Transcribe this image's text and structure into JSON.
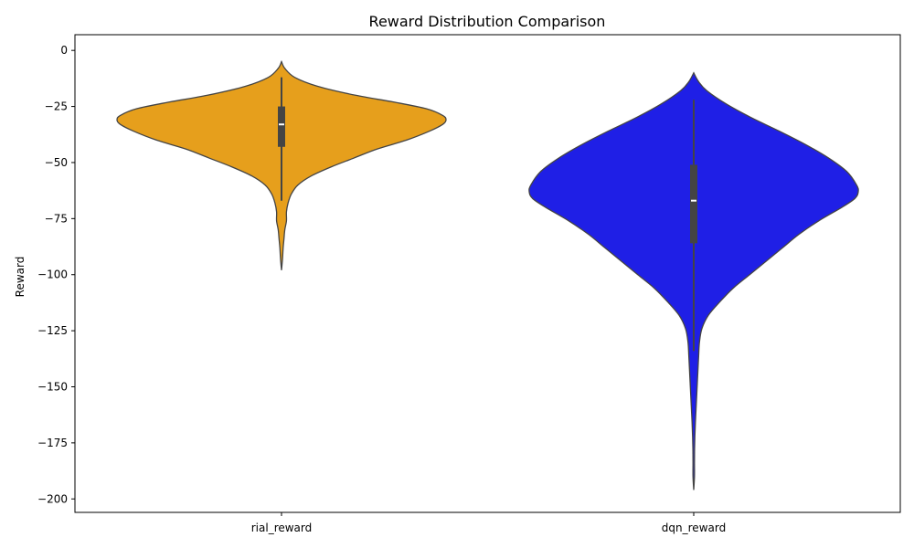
{
  "chart_data": {
    "type": "violin",
    "title": "Reward Distribution Comparison",
    "xlabel": "",
    "ylabel": "Reward",
    "ylim": [
      -206,
      7
    ],
    "yticks": [
      0,
      -25,
      -50,
      -75,
      -100,
      -125,
      -150,
      -175,
      -200
    ],
    "ytick_labels": [
      "0",
      "−25",
      "−50",
      "−75",
      "−100",
      "−125",
      "−150",
      "−175",
      "−200"
    ],
    "categories": [
      "rial_reward",
      "dqn_reward"
    ],
    "grid": false,
    "series": [
      {
        "category": "rial_reward",
        "color": "#e69f1c",
        "min": -98,
        "max": -5,
        "median": -33,
        "q1": -43,
        "q3": -25,
        "whisker_low": -67,
        "whisker_high": -12,
        "density": [
          [
            -5,
            0.0
          ],
          [
            -8,
            0.02
          ],
          [
            -12,
            0.08
          ],
          [
            -16,
            0.22
          ],
          [
            -20,
            0.45
          ],
          [
            -23,
            0.68
          ],
          [
            -26,
            0.88
          ],
          [
            -29,
            0.98
          ],
          [
            -31,
            1.0
          ],
          [
            -33,
            0.98
          ],
          [
            -36,
            0.9
          ],
          [
            -40,
            0.76
          ],
          [
            -44,
            0.58
          ],
          [
            -48,
            0.44
          ],
          [
            -52,
            0.3
          ],
          [
            -56,
            0.18
          ],
          [
            -60,
            0.1
          ],
          [
            -64,
            0.06
          ],
          [
            -68,
            0.04
          ],
          [
            -72,
            0.03
          ],
          [
            -76,
            0.03
          ],
          [
            -80,
            0.02
          ],
          [
            -84,
            0.015
          ],
          [
            -88,
            0.01
          ],
          [
            -93,
            0.006
          ],
          [
            -98,
            0.0
          ]
        ]
      },
      {
        "category": "dqn_reward",
        "color": "#1f1fe6",
        "min": -196,
        "max": -10,
        "median": -67,
        "q1": -86,
        "q3": -51,
        "whisker_low": -134,
        "whisker_high": -22,
        "density": [
          [
            -10,
            0.0
          ],
          [
            -14,
            0.03
          ],
          [
            -18,
            0.08
          ],
          [
            -24,
            0.2
          ],
          [
            -30,
            0.35
          ],
          [
            -36,
            0.52
          ],
          [
            -42,
            0.68
          ],
          [
            -48,
            0.82
          ],
          [
            -54,
            0.93
          ],
          [
            -60,
            0.99
          ],
          [
            -63,
            1.0
          ],
          [
            -66,
            0.98
          ],
          [
            -70,
            0.9
          ],
          [
            -76,
            0.76
          ],
          [
            -82,
            0.64
          ],
          [
            -88,
            0.54
          ],
          [
            -94,
            0.44
          ],
          [
            -100,
            0.34
          ],
          [
            -106,
            0.24
          ],
          [
            -112,
            0.16
          ],
          [
            -118,
            0.09
          ],
          [
            -124,
            0.05
          ],
          [
            -130,
            0.035
          ],
          [
            -136,
            0.03
          ],
          [
            -142,
            0.026
          ],
          [
            -148,
            0.022
          ],
          [
            -154,
            0.018
          ],
          [
            -160,
            0.014
          ],
          [
            -166,
            0.01
          ],
          [
            -172,
            0.007
          ],
          [
            -178,
            0.005
          ],
          [
            -184,
            0.003
          ],
          [
            -190,
            0.002
          ],
          [
            -196,
            0.0
          ]
        ]
      }
    ]
  }
}
